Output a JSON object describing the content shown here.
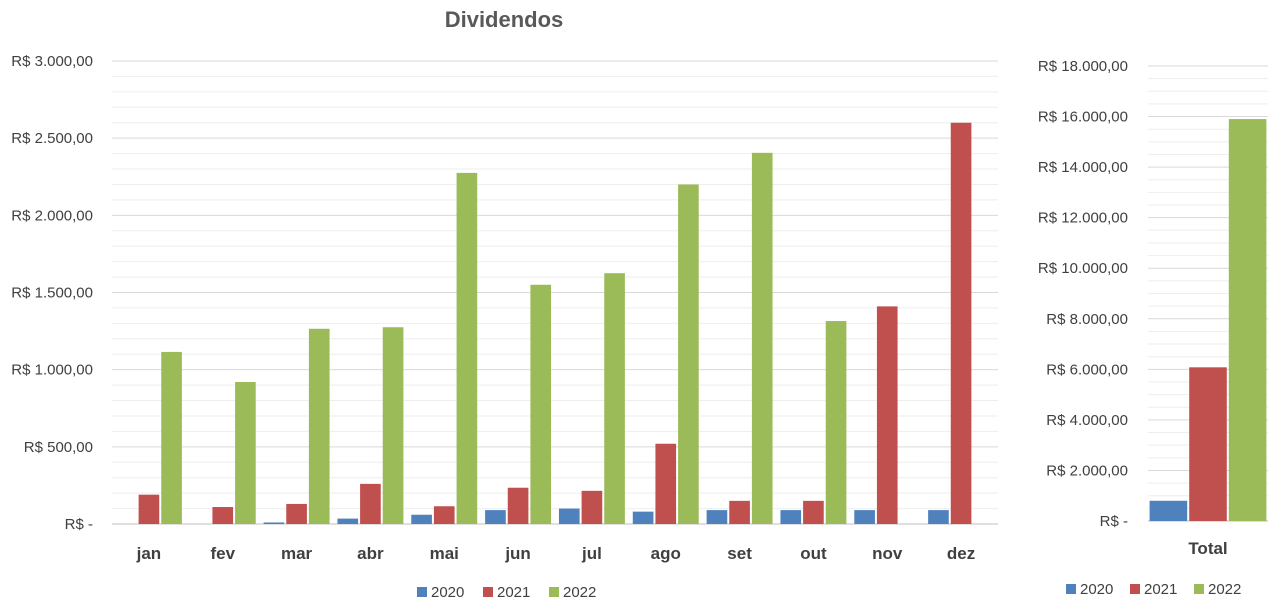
{
  "colors": {
    "2020": "#4f81bd",
    "2021": "#c0504d",
    "2022": "#9bbb59",
    "gridline": "#d9d9d9",
    "minor_gridline": "#eeeeee",
    "axis_line": "#bfbfbf"
  },
  "chart_data": [
    {
      "type": "bar",
      "title": "Dividendos",
      "xlabel": "",
      "ylabel": "",
      "categories": [
        "jan",
        "fev",
        "mar",
        "abr",
        "mai",
        "jun",
        "jul",
        "ago",
        "set",
        "out",
        "nov",
        "dez"
      ],
      "series": [
        {
          "name": "2020",
          "values": [
            0,
            0,
            10,
            35,
            60,
            90,
            100,
            80,
            90,
            90,
            90,
            90
          ]
        },
        {
          "name": "2021",
          "values": [
            190,
            110,
            130,
            260,
            115,
            235,
            215,
            520,
            150,
            150,
            1410,
            2600
          ]
        },
        {
          "name": "2022",
          "values": [
            1115,
            920,
            1265,
            1275,
            2275,
            1550,
            1625,
            2200,
            2405,
            1315,
            0,
            0
          ]
        }
      ],
      "ylim": [
        0,
        3000
      ],
      "yticks": [
        0,
        500,
        1000,
        1500,
        2000,
        2500,
        3000
      ],
      "ytick_labels": [
        "R$ -",
        "R$ 500,00",
        "R$ 1.000,00",
        "R$ 1.500,00",
        "R$ 2.000,00",
        "R$ 2.500,00",
        "R$ 3.000,00"
      ],
      "grid": true,
      "legend": "bottom"
    },
    {
      "type": "bar",
      "title": "",
      "xlabel": "",
      "ylabel": "",
      "categories": [
        "Total"
      ],
      "series": [
        {
          "name": "2020",
          "values": [
            800
          ]
        },
        {
          "name": "2021",
          "values": [
            6080
          ]
        },
        {
          "name": "2022",
          "values": [
            15900
          ]
        }
      ],
      "ylim": [
        0,
        18000
      ],
      "yticks": [
        0,
        2000,
        4000,
        6000,
        8000,
        10000,
        12000,
        14000,
        16000,
        18000
      ],
      "ytick_labels": [
        "R$ -",
        "R$ 2.000,00",
        "R$ 4.000,00",
        "R$ 6.000,00",
        "R$ 8.000,00",
        "R$ 10.000,00",
        "R$ 12.000,00",
        "R$ 14.000,00",
        "R$ 16.000,00",
        "R$ 18.000,00"
      ],
      "grid": true,
      "legend": "bottom"
    }
  ]
}
